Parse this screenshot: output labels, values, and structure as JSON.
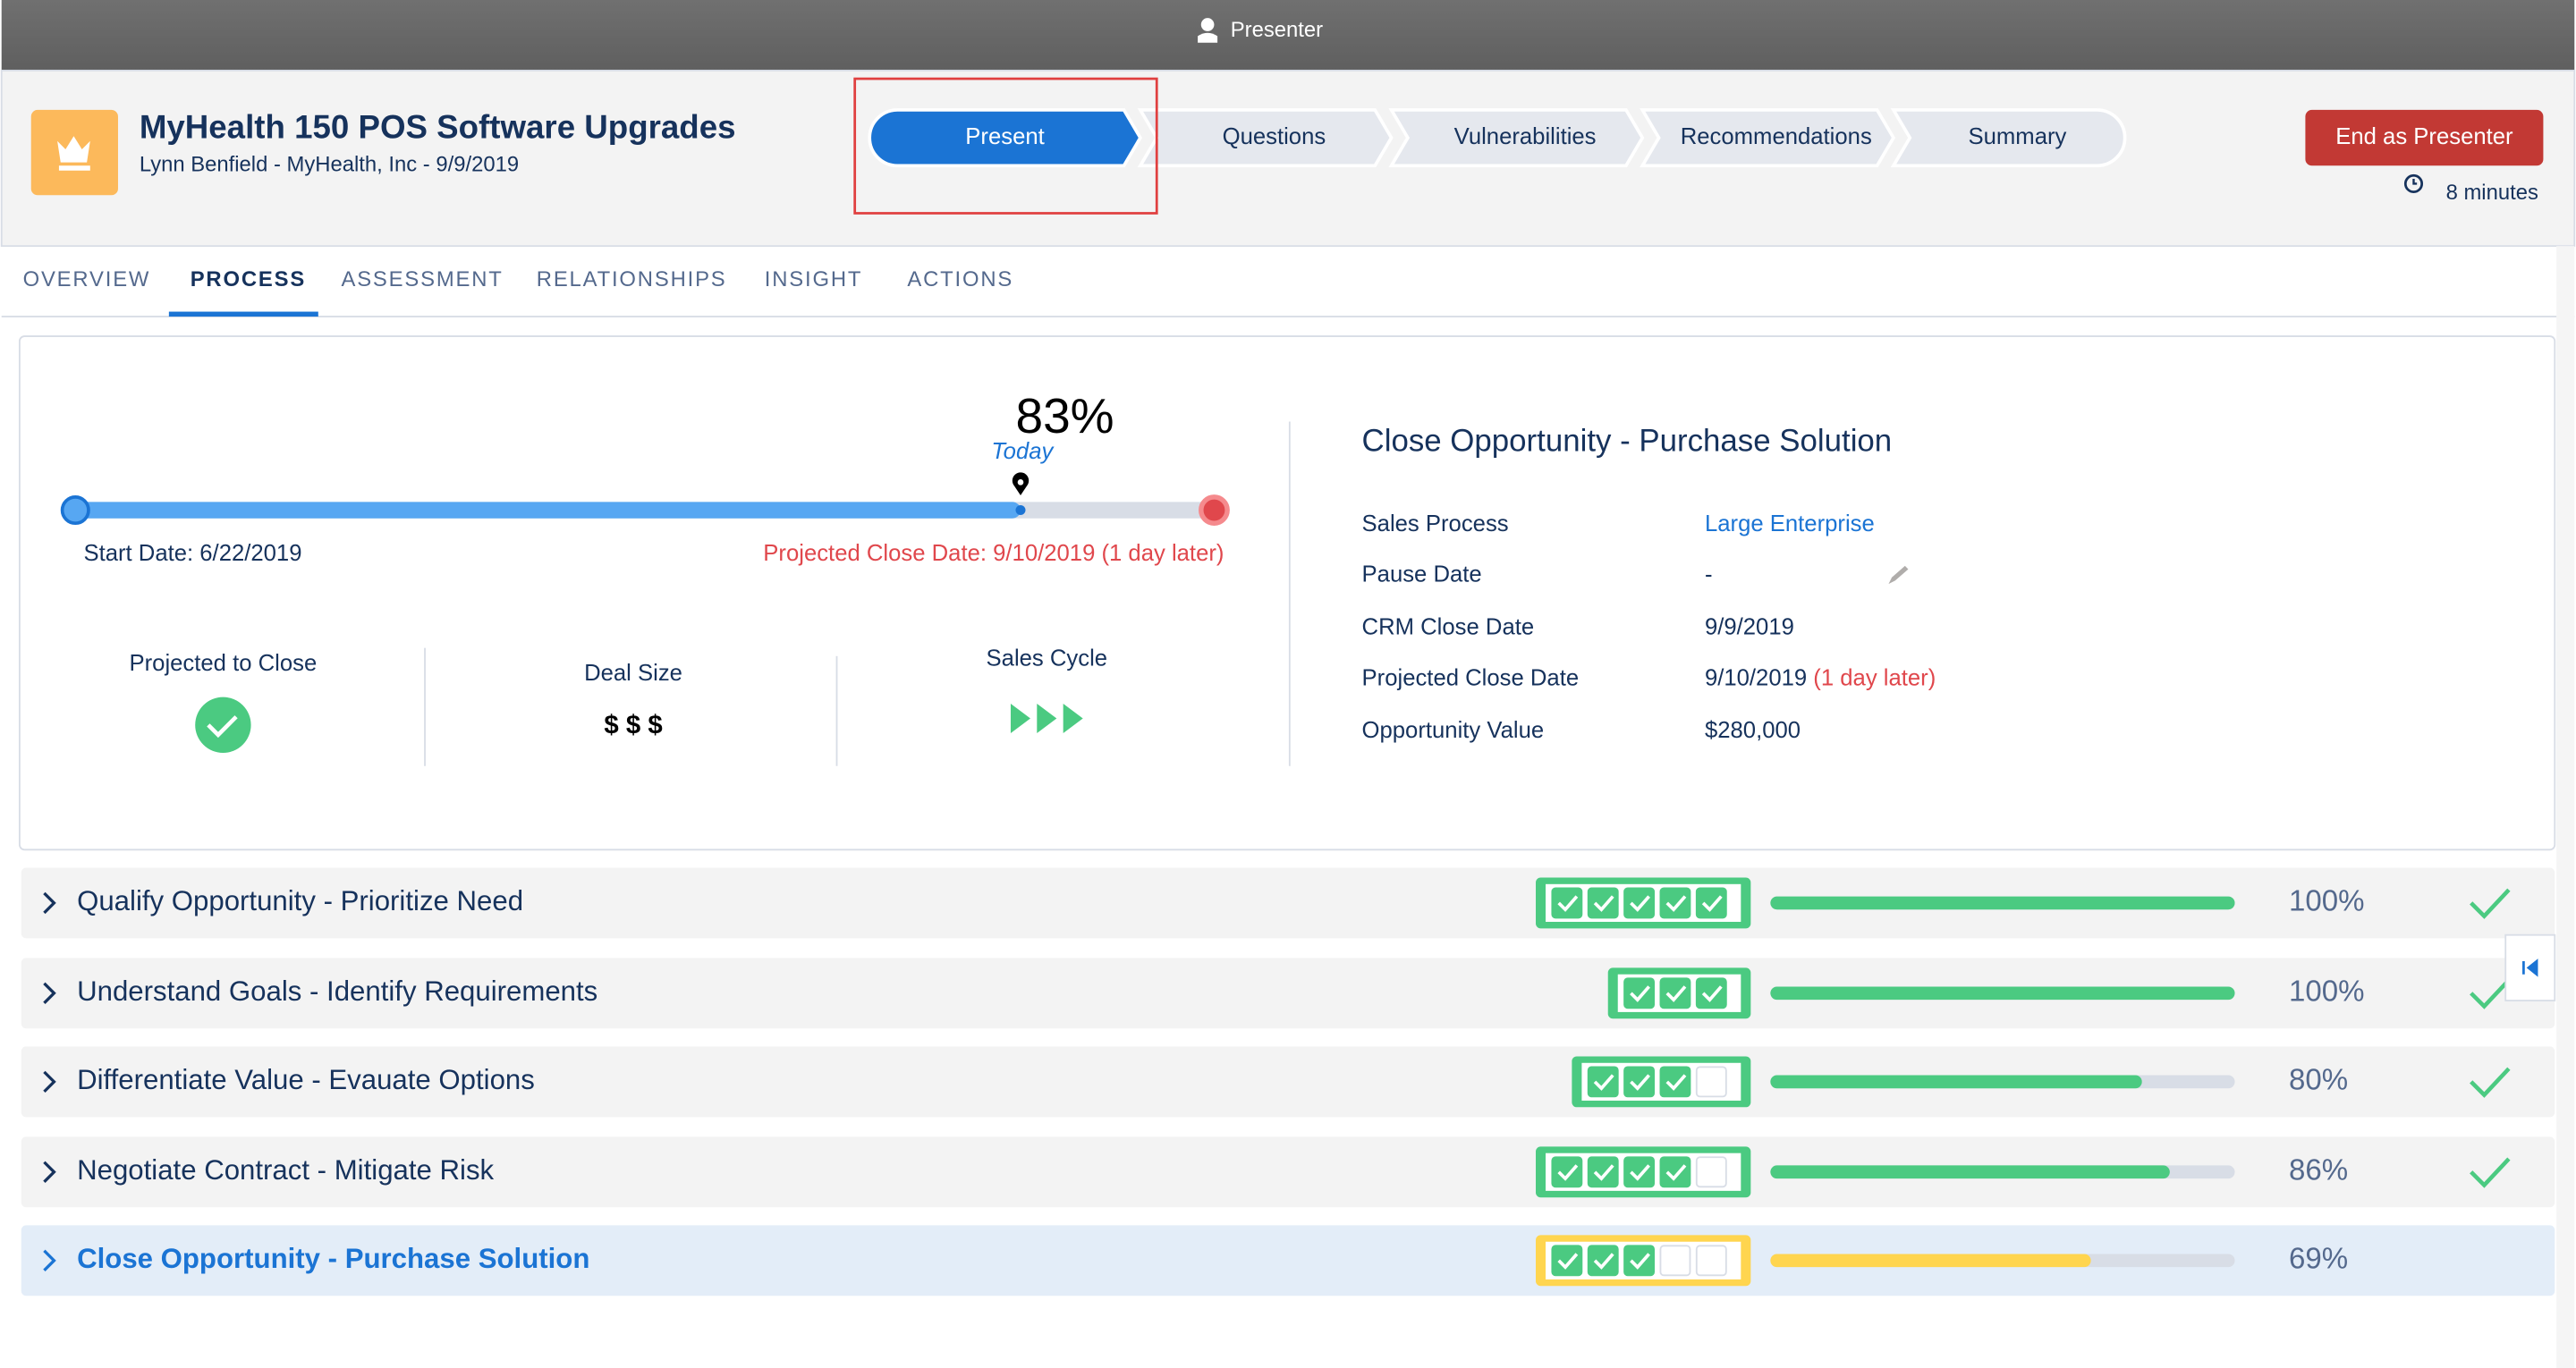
{
  "topbar": {
    "label": "Presenter"
  },
  "header": {
    "title": "MyHealth 150 POS Software Upgrades",
    "subtitle": "Lynn Benfield - MyHealth, Inc - 9/9/2019",
    "steps": [
      "Present",
      "Questions",
      "Vulnerabilities",
      "Recommendations",
      "Summary"
    ],
    "button": "End as Presenter",
    "timer": "8 minutes"
  },
  "tabs": [
    "OVERVIEW",
    "PROCESS",
    "ASSESSMENT",
    "RELATIONSHIPS",
    "INSIGHT",
    "ACTIONS"
  ],
  "timeline": {
    "percent": 83,
    "percent_label": "83%",
    "today": "Today",
    "start": "Start Date: 6/22/2019",
    "projected": "Projected Close Date: 9/10/2019 (1 day later)"
  },
  "metrics": [
    {
      "label": "Projected to Close"
    },
    {
      "label": "Deal Size",
      "value": "$ $ $"
    },
    {
      "label": "Sales Cycle"
    }
  ],
  "details": {
    "title": "Close Opportunity - Purchase Solution",
    "rows": [
      [
        "Sales Process",
        "Large Enterprise"
      ],
      [
        "Pause Date",
        "-"
      ],
      [
        "CRM Close Date",
        "9/9/2019"
      ],
      [
        "Projected Close Date",
        "9/10/2019",
        "(1 day later)"
      ],
      [
        "Opportunity Value",
        "$280,000"
      ]
    ]
  },
  "stages": [
    {
      "name": "Qualify Opportunity - Prioritize Need",
      "checks_done": 5,
      "checks_total": 5,
      "percent": 100,
      "percent_label": "100%",
      "complete": true,
      "current": false
    },
    {
      "name": "Understand Goals - Identify Requirements",
      "checks_done": 3,
      "checks_total": 3,
      "percent": 100,
      "percent_label": "100%",
      "complete": true,
      "current": false
    },
    {
      "name": "Differentiate Value - Evauate Options",
      "checks_done": 3,
      "checks_total": 4,
      "percent": 80,
      "percent_label": "80%",
      "complete": true,
      "current": false
    },
    {
      "name": "Negotiate Contract - Mitigate Risk",
      "checks_done": 4,
      "checks_total": 5,
      "percent": 86,
      "percent_label": "86%",
      "complete": true,
      "current": false
    },
    {
      "name": "Close Opportunity - Purchase Solution",
      "checks_done": 3,
      "checks_total": 5,
      "percent": 69,
      "percent_label": "69%",
      "complete": false,
      "current": true
    }
  ]
}
